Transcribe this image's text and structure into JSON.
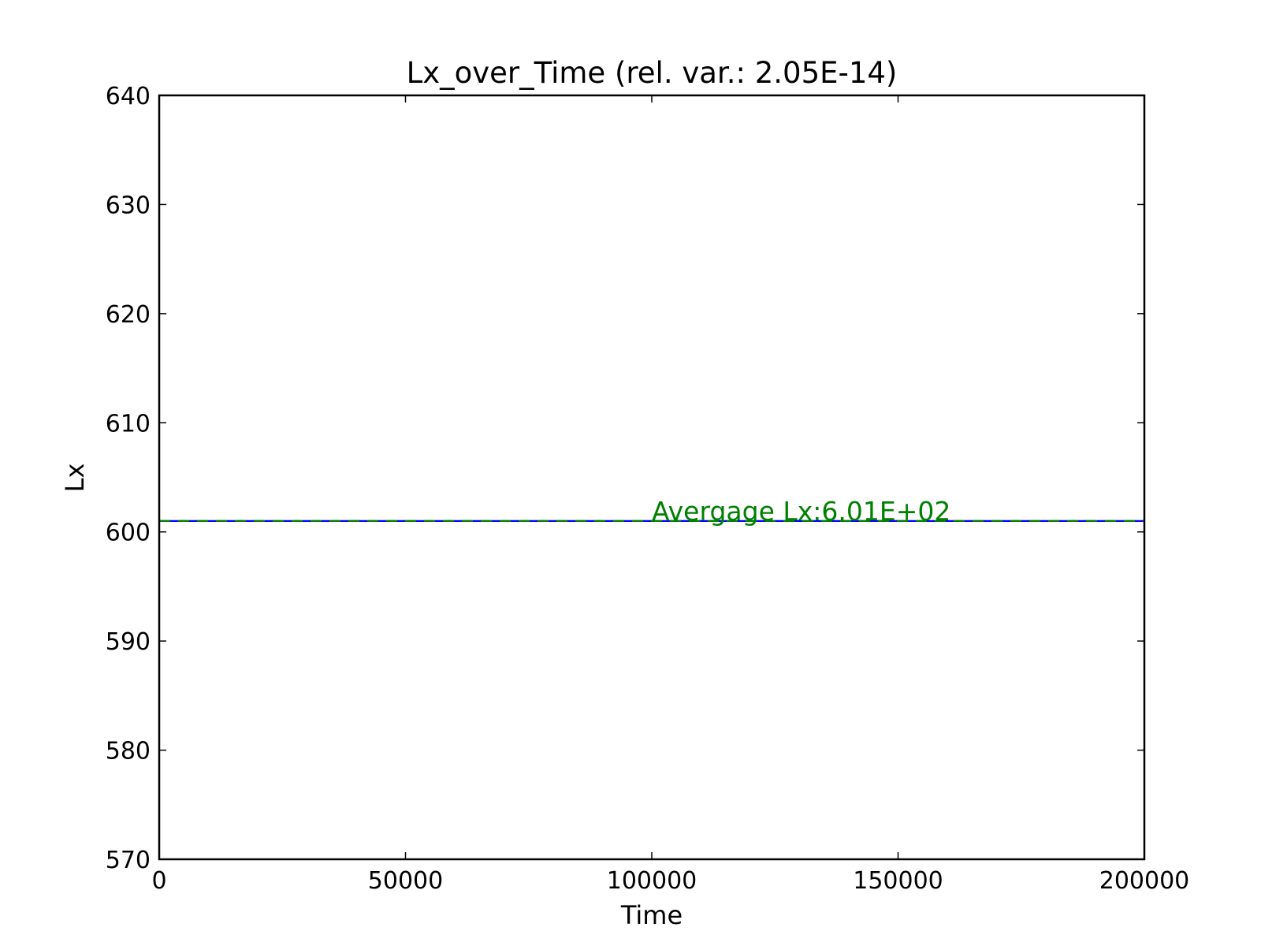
{
  "chart_data": {
    "type": "line",
    "title": "Lx_over_Time (rel. var.: 2.05E-14)",
    "xlabel": "Time",
    "ylabel": "Lx",
    "xlim": [
      0,
      200000
    ],
    "ylim": [
      570,
      640
    ],
    "x_ticks": [
      0,
      50000,
      100000,
      150000,
      200000
    ],
    "x_tick_labels": [
      "0",
      "50000",
      "100000",
      "150000",
      "200000"
    ],
    "y_ticks": [
      570,
      580,
      590,
      600,
      610,
      620,
      630,
      640
    ],
    "y_tick_labels": [
      "570",
      "580",
      "590",
      "600",
      "610",
      "620",
      "630",
      "640"
    ],
    "grid": false,
    "series": [
      {
        "color": "#0000ff",
        "style": "solid",
        "x": [
          0,
          200000
        ],
        "y": [
          601,
          601
        ]
      }
    ],
    "average_line": {
      "y": 601,
      "color": "#008000",
      "style": "dashed"
    },
    "annotation": {
      "text": "Avergage Lx:6.01E+02",
      "x": 100000,
      "y": 601,
      "color": "#008000"
    }
  }
}
